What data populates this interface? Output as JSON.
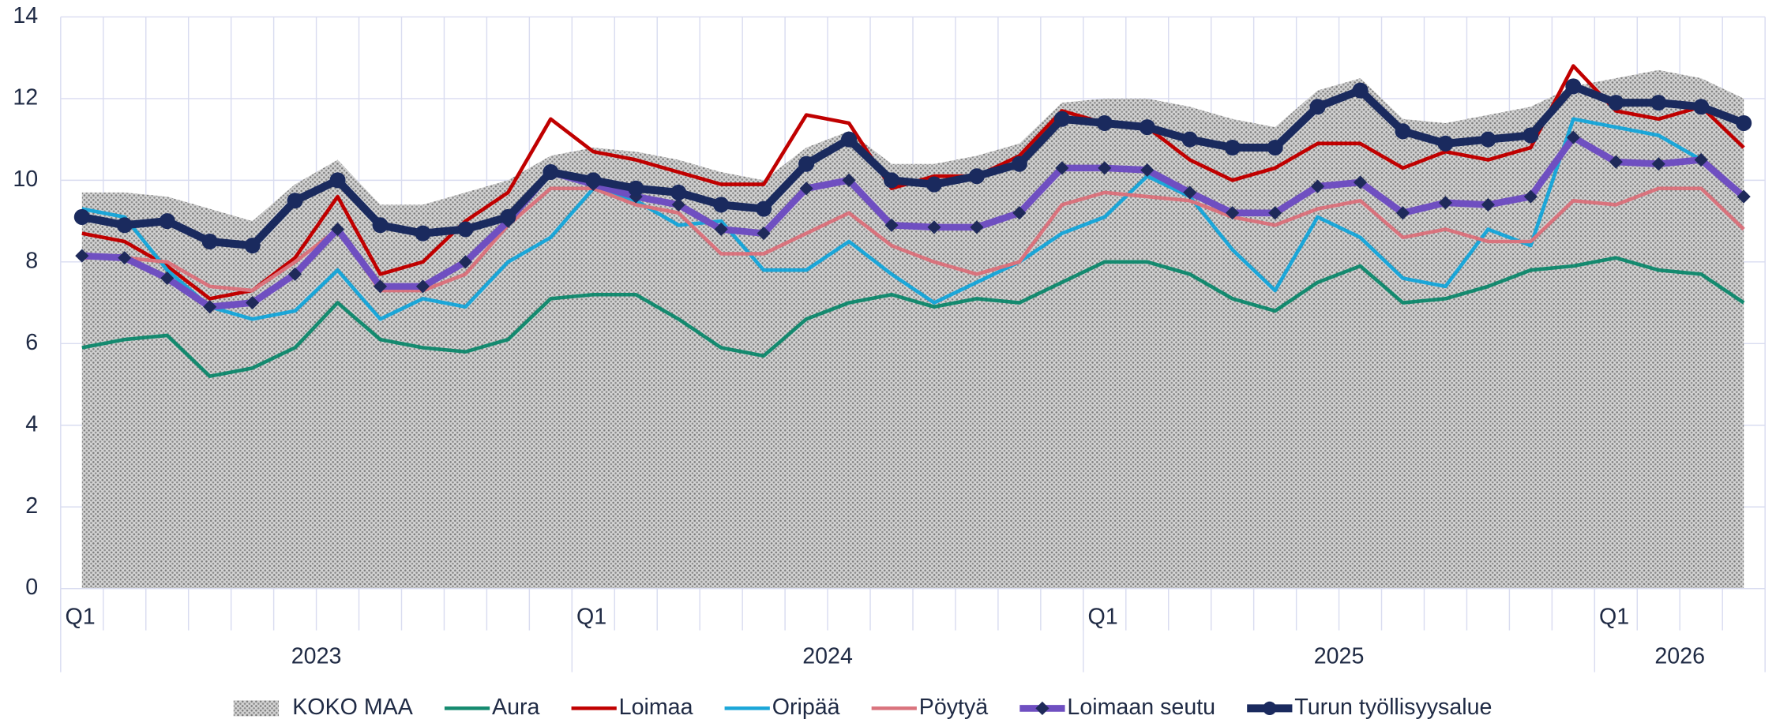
{
  "chart_data": {
    "type": "line",
    "categories": [
      "Q1",
      null,
      null,
      null,
      null,
      null,
      null,
      null,
      null,
      null,
      null,
      null,
      "Q1",
      null,
      null,
      null,
      null,
      null,
      null,
      null,
      null,
      null,
      null,
      null,
      "Q1",
      null,
      null,
      null,
      null,
      null,
      null,
      null,
      null,
      null,
      null,
      null,
      "Q1",
      null,
      null,
      null
    ],
    "years": [
      "2023",
      "2024",
      "2025",
      "2026"
    ],
    "ylim": [
      0,
      14
    ],
    "yticks": [
      0,
      2,
      4,
      6,
      8,
      10,
      12,
      14
    ],
    "grid": true,
    "legend": "bottom",
    "series": [
      {
        "name": "KOKO MAA",
        "style": "area",
        "color": "#8c8c8c",
        "values": [
          9.7,
          9.7,
          9.6,
          9.3,
          9.0,
          9.9,
          10.5,
          9.4,
          9.4,
          9.7,
          10.0,
          10.6,
          10.8,
          10.7,
          10.5,
          10.2,
          10.0,
          10.8,
          11.2,
          10.4,
          10.4,
          10.6,
          10.9,
          11.9,
          12.0,
          12.0,
          11.8,
          11.5,
          11.3,
          12.2,
          12.5,
          11.5,
          11.4,
          11.6,
          11.8,
          12.3,
          12.5,
          12.7,
          12.5,
          12.0
        ]
      },
      {
        "name": "Aura",
        "color": "#148a6f",
        "values": [
          5.9,
          6.1,
          6.2,
          5.2,
          5.4,
          5.9,
          7.0,
          6.1,
          5.9,
          5.8,
          6.1,
          7.1,
          7.2,
          7.2,
          6.6,
          5.9,
          5.7,
          6.6,
          7.0,
          7.2,
          6.9,
          7.1,
          7.0,
          7.5,
          8.0,
          8.0,
          7.7,
          7.1,
          6.8,
          7.5,
          7.9,
          7.0,
          7.1,
          7.4,
          7.8,
          7.9,
          8.1,
          7.8,
          7.7,
          7.0
        ]
      },
      {
        "name": "Loimaa",
        "color": "#c00000",
        "values": [
          8.7,
          8.5,
          7.9,
          7.1,
          7.3,
          8.1,
          9.6,
          7.7,
          8.0,
          9.0,
          9.7,
          11.5,
          10.7,
          10.5,
          10.2,
          9.9,
          9.9,
          11.6,
          11.4,
          9.8,
          10.1,
          10.1,
          10.6,
          11.7,
          11.4,
          11.3,
          10.5,
          10.0,
          10.3,
          10.9,
          10.9,
          10.3,
          10.7,
          10.5,
          10.8,
          12.8,
          11.7,
          11.5,
          11.8,
          10.8
        ]
      },
      {
        "name": "Oripää",
        "color": "#1ba6d8",
        "values": [
          9.3,
          9.1,
          7.8,
          6.9,
          6.6,
          6.8,
          7.8,
          6.6,
          7.1,
          6.9,
          8.0,
          8.6,
          9.8,
          9.5,
          8.9,
          9.0,
          7.8,
          7.8,
          8.5,
          7.7,
          7.0,
          7.5,
          8.0,
          8.7,
          9.1,
          10.1,
          9.6,
          8.3,
          7.3,
          9.1,
          8.6,
          7.6,
          7.4,
          8.8,
          8.4,
          11.5,
          11.3,
          11.1,
          10.5,
          9.6
        ]
      },
      {
        "name": "Pöytyä",
        "color": "#d9737d",
        "values": [
          8.1,
          8.1,
          8.0,
          7.4,
          7.3,
          8.0,
          8.8,
          7.3,
          7.3,
          7.7,
          8.9,
          9.8,
          9.8,
          9.4,
          9.2,
          8.2,
          8.2,
          8.7,
          9.2,
          8.4,
          8.0,
          7.7,
          8.0,
          9.4,
          9.7,
          9.6,
          9.5,
          9.1,
          8.9,
          9.3,
          9.5,
          8.6,
          8.8,
          8.5,
          8.5,
          9.5,
          9.4,
          9.8,
          9.8,
          8.8
        ]
      },
      {
        "name": "Loimaan seutu",
        "color": "#6f4fc1",
        "marker": "diamond",
        "marker_color": "#1f2a5a",
        "values": [
          8.15,
          8.1,
          7.6,
          6.9,
          7.0,
          7.7,
          8.8,
          7.4,
          7.4,
          8.0,
          9.0,
          10.2,
          9.9,
          9.6,
          9.4,
          8.8,
          8.7,
          9.8,
          10.0,
          8.9,
          8.85,
          8.85,
          9.2,
          10.3,
          10.3,
          10.25,
          9.7,
          9.2,
          9.2,
          9.85,
          9.95,
          9.2,
          9.45,
          9.4,
          9.6,
          11.05,
          10.45,
          10.4,
          10.5,
          9.6
        ]
      },
      {
        "name": "Turun työllisyysalue",
        "color": "#1a2a5e",
        "marker": "circle",
        "marker_color": "#1a2a5e",
        "values": [
          9.1,
          8.9,
          9.0,
          8.5,
          8.4,
          9.5,
          10.0,
          8.9,
          8.7,
          8.8,
          9.1,
          10.2,
          10.0,
          9.8,
          9.7,
          9.4,
          9.3,
          10.4,
          11.0,
          10.0,
          9.9,
          10.1,
          10.4,
          11.5,
          11.4,
          11.3,
          11.0,
          10.8,
          10.8,
          11.8,
          12.2,
          11.2,
          10.9,
          11.0,
          11.1,
          12.3,
          11.9,
          11.9,
          11.8,
          11.4
        ]
      }
    ]
  }
}
